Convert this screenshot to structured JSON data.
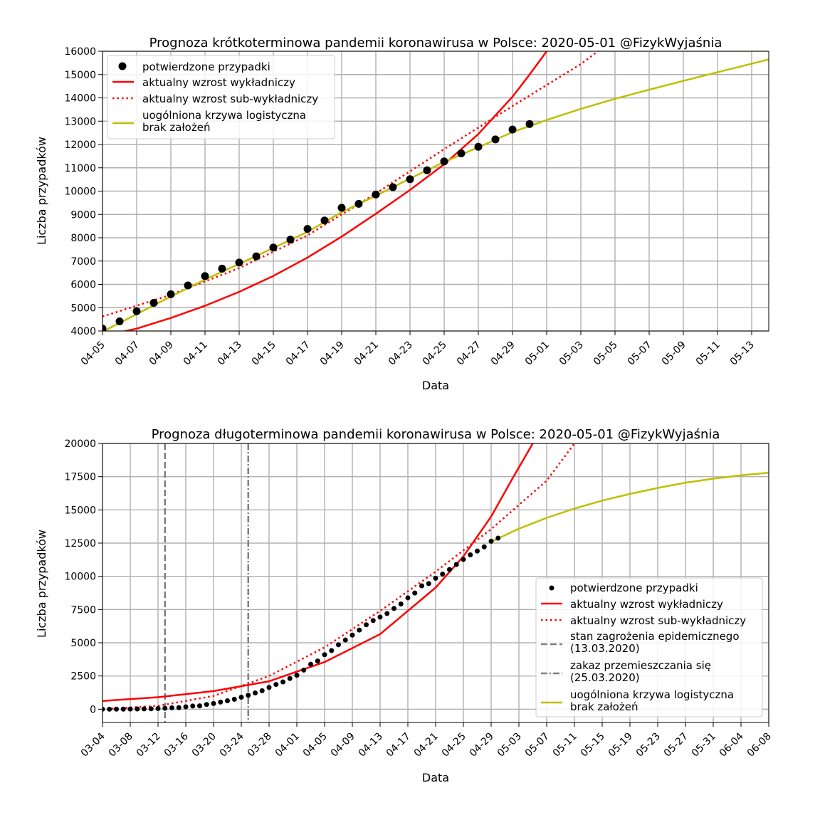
{
  "chart_data": [
    {
      "type": "line",
      "title": "Prognoza krótkoterminowa pandemii koronawirusa w Polsce: 2020-05-01 @FizykWyjaśnia",
      "xlabel": "Data",
      "ylabel": "Liczba przypadków",
      "xlim": [
        "2020-04-05",
        "2020-05-14"
      ],
      "ylim": [
        4000,
        16000
      ],
      "yticks": [
        4000,
        5000,
        6000,
        7000,
        8000,
        9000,
        10000,
        11000,
        12000,
        13000,
        14000,
        15000,
        16000
      ],
      "xticks": [
        "2020-04-05",
        "2020-04-07",
        "2020-04-09",
        "2020-04-11",
        "2020-04-13",
        "2020-04-15",
        "2020-04-17",
        "2020-04-19",
        "2020-04-21",
        "2020-04-23",
        "2020-04-25",
        "2020-04-27",
        "2020-04-29",
        "2020-05-01",
        "2020-05-03",
        "2020-05-05",
        "2020-05-07",
        "2020-05-09",
        "2020-05-11",
        "2020-05-13"
      ],
      "xtick_labels": [
        "04-05",
        "04-07",
        "04-09",
        "04-11",
        "04-13",
        "04-15",
        "04-17",
        "04-19",
        "04-21",
        "04-23",
        "04-25",
        "04-27",
        "04-29",
        "05-01",
        "05-03",
        "05-05",
        "05-07",
        "05-09",
        "05-11",
        "05-13"
      ],
      "grid": true,
      "legend_position": "top-left",
      "series": [
        {
          "name": "potwierdzone przypadki",
          "style": "points",
          "color": "#000000",
          "x": [
            "2020-04-05",
            "2020-04-06",
            "2020-04-07",
            "2020-04-08",
            "2020-04-09",
            "2020-04-10",
            "2020-04-11",
            "2020-04-12",
            "2020-04-13",
            "2020-04-14",
            "2020-04-15",
            "2020-04-16",
            "2020-04-17",
            "2020-04-18",
            "2020-04-19",
            "2020-04-20",
            "2020-04-21",
            "2020-04-22",
            "2020-04-23",
            "2020-04-24",
            "2020-04-25",
            "2020-04-26",
            "2020-04-27",
            "2020-04-28",
            "2020-04-29",
            "2020-04-30"
          ],
          "values": [
            4102,
            4413,
            4848,
            5205,
            5575,
            5955,
            6356,
            6674,
            6934,
            7202,
            7582,
            7918,
            8379,
            8742,
            9287,
            9453,
            9856,
            10169,
            10511,
            10892,
            11273,
            11617,
            11902,
            12218,
            12640,
            12877
          ]
        },
        {
          "name": "aktualny wzrost wykładniczy",
          "style": "solid",
          "color": "#ff0000",
          "x": [
            "2020-04-05",
            "2020-04-07",
            "2020-04-09",
            "2020-04-11",
            "2020-04-13",
            "2020-04-15",
            "2020-04-17",
            "2020-04-19",
            "2020-04-21",
            "2020-04-23",
            "2020-04-25",
            "2020-04-27",
            "2020-04-29",
            "2020-04-30",
            "2020-05-01"
          ],
          "values": [
            3780,
            4100,
            4560,
            5080,
            5680,
            6360,
            7150,
            8050,
            9030,
            10050,
            11150,
            12450,
            14050,
            15000,
            16000
          ]
        },
        {
          "name": "aktualny wzrost sub-wykładniczy",
          "style": "dotted",
          "color": "#ff0000",
          "x": [
            "2020-04-05",
            "2020-04-09",
            "2020-04-13",
            "2020-04-17",
            "2020-04-21",
            "2020-04-25",
            "2020-04-29",
            "2020-05-01",
            "2020-05-03",
            "2020-05-04"
          ],
          "values": [
            4620,
            5550,
            6700,
            8100,
            9900,
            11800,
            13650,
            14550,
            15450,
            16000
          ]
        },
        {
          "name": "uogólniona krzywa logistyczna\nbrak założeń",
          "style": "solid",
          "color": "#bfbf00",
          "x": [
            "2020-04-05",
            "2020-04-07",
            "2020-04-09",
            "2020-04-11",
            "2020-04-13",
            "2020-04-15",
            "2020-04-17",
            "2020-04-19",
            "2020-04-21",
            "2020-04-23",
            "2020-04-25",
            "2020-04-27",
            "2020-04-29",
            "2020-05-01",
            "2020-05-03",
            "2020-05-05",
            "2020-05-07",
            "2020-05-09",
            "2020-05-11",
            "2020-05-14"
          ],
          "values": [
            3970,
            4720,
            5480,
            6200,
            6880,
            7560,
            8250,
            9100,
            9800,
            10540,
            11250,
            11880,
            12530,
            13050,
            13530,
            13960,
            14350,
            14730,
            15100,
            15650
          ]
        }
      ]
    },
    {
      "type": "line",
      "title": "Prognoza długoterminowa pandemii koronawirusa w Polsce: 2020-05-01 @FizykWyjaśnia",
      "xlabel": "Data",
      "ylabel": "Liczba przypadków",
      "xlim": [
        "2020-03-04",
        "2020-06-08"
      ],
      "ylim": [
        -1000,
        20000
      ],
      "yticks": [
        0,
        2500,
        5000,
        7500,
        10000,
        12500,
        15000,
        17500,
        20000
      ],
      "xticks": [
        "2020-03-04",
        "2020-03-08",
        "2020-03-12",
        "2020-03-16",
        "2020-03-20",
        "2020-03-24",
        "2020-03-28",
        "2020-04-01",
        "2020-04-05",
        "2020-04-09",
        "2020-04-13",
        "2020-04-17",
        "2020-04-21",
        "2020-04-25",
        "2020-04-29",
        "2020-05-03",
        "2020-05-07",
        "2020-05-11",
        "2020-05-15",
        "2020-05-19",
        "2020-05-23",
        "2020-05-27",
        "2020-05-31",
        "2020-06-04",
        "2020-06-08"
      ],
      "xtick_labels": [
        "03-04",
        "03-08",
        "03-12",
        "03-16",
        "03-20",
        "03-24",
        "03-28",
        "04-01",
        "04-05",
        "04-09",
        "04-13",
        "04-17",
        "04-21",
        "04-25",
        "04-29",
        "05-03",
        "05-07",
        "05-11",
        "05-15",
        "05-19",
        "05-23",
        "05-27",
        "05-31",
        "06-04",
        "06-08"
      ],
      "grid": true,
      "legend_position": "center-right",
      "vlines": [
        {
          "date": "2020-03-13",
          "style": "dashed",
          "label": "stan zagrożenia epidemicznego\n(13.03.2020)"
        },
        {
          "date": "2020-03-25",
          "style": "dashdot",
          "label": "zakaz przemieszczania się\n(25.03.2020)"
        }
      ],
      "series": [
        {
          "name": "potwierdzone przypadki",
          "style": "points",
          "color": "#000000",
          "x": [
            "2020-03-04",
            "2020-03-05",
            "2020-03-06",
            "2020-03-07",
            "2020-03-08",
            "2020-03-09",
            "2020-03-10",
            "2020-03-11",
            "2020-03-12",
            "2020-03-13",
            "2020-03-14",
            "2020-03-15",
            "2020-03-16",
            "2020-03-17",
            "2020-03-18",
            "2020-03-19",
            "2020-03-20",
            "2020-03-21",
            "2020-03-22",
            "2020-03-23",
            "2020-03-24",
            "2020-03-25",
            "2020-03-26",
            "2020-03-27",
            "2020-03-28",
            "2020-03-29",
            "2020-03-30",
            "2020-03-31",
            "2020-04-01",
            "2020-04-02",
            "2020-04-03",
            "2020-04-04",
            "2020-04-05",
            "2020-04-06",
            "2020-04-07",
            "2020-04-08",
            "2020-04-09",
            "2020-04-10",
            "2020-04-11",
            "2020-04-12",
            "2020-04-13",
            "2020-04-14",
            "2020-04-15",
            "2020-04-16",
            "2020-04-17",
            "2020-04-18",
            "2020-04-19",
            "2020-04-20",
            "2020-04-21",
            "2020-04-22",
            "2020-04-23",
            "2020-04-24",
            "2020-04-25",
            "2020-04-26",
            "2020-04-27",
            "2020-04-28",
            "2020-04-29",
            "2020-04-30"
          ],
          "values": [
            1,
            1,
            5,
            5,
            11,
            16,
            22,
            31,
            51,
            68,
            103,
            119,
            177,
            238,
            251,
            355,
            425,
            536,
            634,
            749,
            901,
            1051,
            1221,
            1389,
            1638,
            1862,
            2055,
            2311,
            2554,
            2946,
            3383,
            3627,
            4102,
            4413,
            4848,
            5205,
            5575,
            5955,
            6356,
            6674,
            6934,
            7202,
            7582,
            7918,
            8379,
            8742,
            9287,
            9453,
            9856,
            10169,
            10511,
            10892,
            11273,
            11617,
            11902,
            12218,
            12640,
            12877
          ]
        },
        {
          "name": "aktualny wzrost wykładniczy",
          "style": "solid",
          "color": "#ff0000",
          "x": [
            "2020-03-04",
            "2020-03-12",
            "2020-03-20",
            "2020-03-28",
            "2020-04-05",
            "2020-04-13",
            "2020-04-21",
            "2020-04-25",
            "2020-04-29",
            "2020-05-02",
            "2020-05-05"
          ],
          "values": [
            620,
            900,
            1360,
            2100,
            3550,
            5650,
            9150,
            11500,
            14500,
            17300,
            20000
          ]
        },
        {
          "name": "aktualny wzrost sub-wykładniczy",
          "style": "dotted",
          "color": "#ff0000",
          "x": [
            "2020-03-04",
            "2020-03-12",
            "2020-03-20",
            "2020-03-28",
            "2020-04-05",
            "2020-04-13",
            "2020-04-21",
            "2020-04-29",
            "2020-05-07",
            "2020-05-11"
          ],
          "values": [
            0,
            250,
            1000,
            2500,
            4650,
            7400,
            10350,
            13550,
            17200,
            20000
          ]
        },
        {
          "name": "uogólniona krzywa logistyczna\nbrak założeń",
          "style": "solid",
          "color": "#bfbf00",
          "x": [
            "2020-04-29",
            "2020-05-03",
            "2020-05-07",
            "2020-05-11",
            "2020-05-15",
            "2020-05-19",
            "2020-05-23",
            "2020-05-27",
            "2020-05-31",
            "2020-06-04",
            "2020-06-08"
          ],
          "values": [
            12600,
            13580,
            14400,
            15100,
            15700,
            16200,
            16650,
            17050,
            17350,
            17600,
            17800
          ]
        }
      ]
    }
  ]
}
